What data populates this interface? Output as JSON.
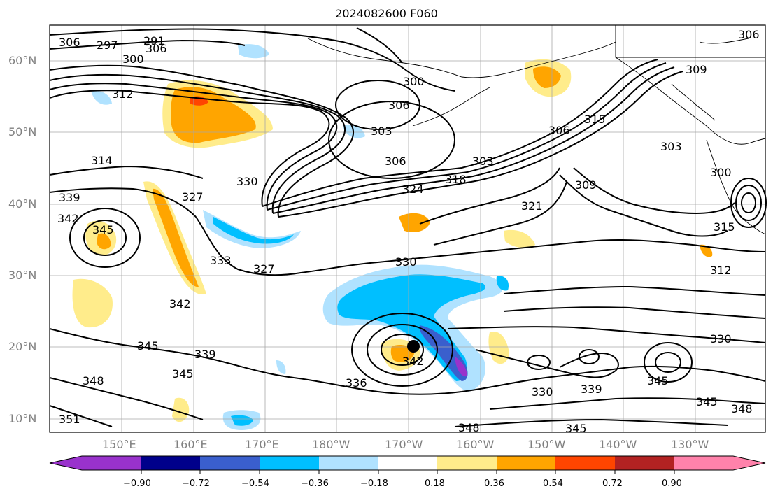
{
  "title": "2024082600 F060",
  "map": {
    "latitude_labels": [
      "60°N",
      "50°N",
      "40°N",
      "30°N",
      "20°N",
      "10°N"
    ],
    "longitude_labels": [
      "150°E",
      "160°E",
      "170°E",
      "180°W",
      "170°W",
      "160°W",
      "150°W",
      "140°W",
      "130°W"
    ],
    "contour_labels": [
      "291",
      "297",
      "300",
      "306",
      "306",
      "312",
      "314",
      "339",
      "342",
      "345",
      "327",
      "330",
      "333",
      "327",
      "342",
      "345",
      "339",
      "345",
      "348",
      "351",
      "300",
      "303",
      "306",
      "306",
      "324",
      "318",
      "303",
      "306",
      "315",
      "303",
      "300",
      "309",
      "321",
      "330",
      "336",
      "342",
      "330",
      "339",
      "348",
      "345",
      "345",
      "330",
      "345",
      "348",
      "312",
      "315",
      "306",
      "309"
    ],
    "colorbar": {
      "ticks": [
        "−0.90",
        "−0.72",
        "−0.54",
        "−0.36",
        "−0.18",
        "0.18",
        "0.36",
        "0.54",
        "0.72",
        "0.90"
      ],
      "colors": [
        "#9932cc",
        "#00008b",
        "#3a5fcd",
        "#00bfff",
        "#b0e2ff",
        "#ffffff",
        "#ffec8b",
        "#ffa500",
        "#ff4500",
        "#b22222",
        "#ff82ab"
      ]
    }
  }
}
